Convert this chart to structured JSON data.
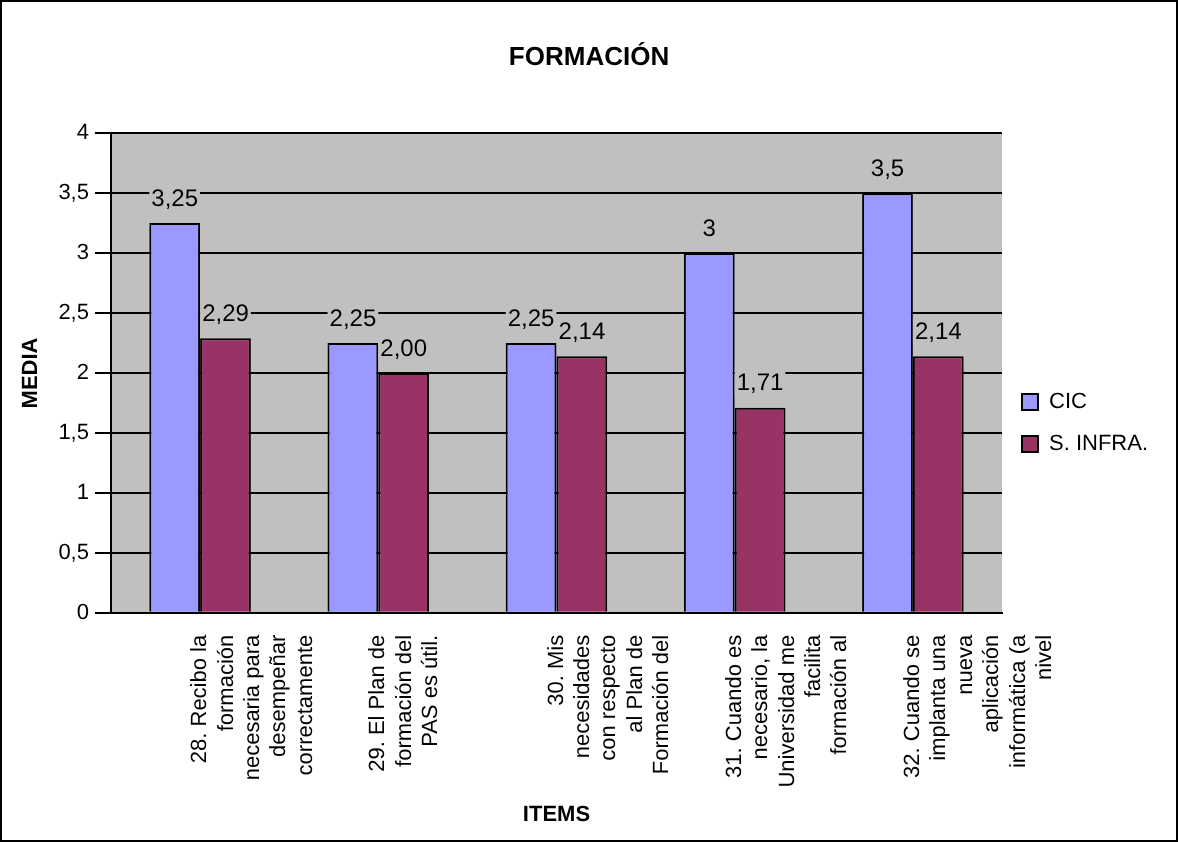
{
  "chart_data": {
    "type": "bar",
    "title": "FORMACIÓN",
    "xlabel": "ITEMS",
    "ylabel": "MEDIA",
    "categories": [
      "28. Recibo la formación necesaria para desempeñar correctamente",
      "29. El Plan de formación del PAS es útil.",
      "30. Mis necesidades con respecto al Plan de Formación del",
      "31. Cuando es necesario, la Universidad me facilita formación al",
      "32. Cuando se implanta una nueva aplicación informática (a nivel"
    ],
    "series": [
      {
        "name": "CIC",
        "color": "#9999ff",
        "values": [
          3.25,
          2.25,
          2.25,
          3,
          3.5
        ],
        "value_labels": [
          "3,25",
          "2,25",
          "2,25",
          "3",
          "3,5"
        ]
      },
      {
        "name": "S. INFRA.",
        "color": "#993366",
        "values": [
          2.29,
          2,
          2.14,
          1.71,
          2.14
        ],
        "value_labels": [
          "2,29",
          "2,00",
          "2,14",
          "1,71",
          "2,14"
        ]
      }
    ],
    "ylim": [
      0,
      4
    ],
    "yticks": [
      0,
      {
        "value": 0.5,
        "label": "0,5"
      },
      1,
      {
        "value": 1.5,
        "label": "1,5"
      },
      2,
      {
        "value": 2.5,
        "label": "2,5"
      },
      3,
      {
        "value": 3.5,
        "label": "3,5"
      },
      4
    ],
    "grid": "y",
    "legend": "right"
  }
}
